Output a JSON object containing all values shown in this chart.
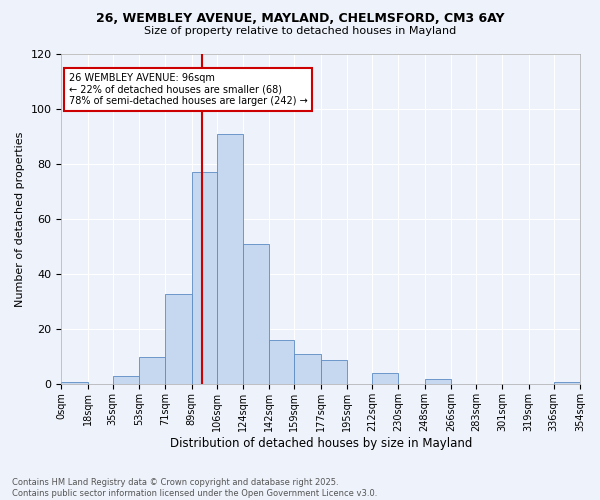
{
  "title1": "26, WEMBLEY AVENUE, MAYLAND, CHELMSFORD, CM3 6AY",
  "title2": "Size of property relative to detached houses in Mayland",
  "xlabel": "Distribution of detached houses by size in Mayland",
  "ylabel": "Number of detached properties",
  "bin_labels": [
    "0sqm",
    "18sqm",
    "35sqm",
    "53sqm",
    "71sqm",
    "89sqm",
    "106sqm",
    "124sqm",
    "142sqm",
    "159sqm",
    "177sqm",
    "195sqm",
    "212sqm",
    "230sqm",
    "248sqm",
    "266sqm",
    "283sqm",
    "301sqm",
    "319sqm",
    "336sqm",
    "354sqm"
  ],
  "bar_values": [
    1,
    0,
    3,
    10,
    33,
    77,
    91,
    51,
    16,
    11,
    9,
    0,
    4,
    0,
    2,
    0,
    0,
    0,
    0,
    1
  ],
  "bar_color": "#c5d8f0",
  "bar_edge_color": "#5b8bc4",
  "vline_x": 96,
  "vline_color": "#cc0000",
  "bin_edges_values": [
    0,
    18,
    35,
    53,
    71,
    89,
    106,
    124,
    142,
    159,
    177,
    195,
    212,
    230,
    248,
    266,
    283,
    301,
    319,
    336,
    354
  ],
  "annotation_text": "26 WEMBLEY AVENUE: 96sqm\n← 22% of detached houses are smaller (68)\n78% of semi-detached houses are larger (242) →",
  "annotation_box_color": "#ffffff",
  "annotation_box_edge": "#cc0000",
  "ylim": [
    0,
    120
  ],
  "yticks": [
    0,
    20,
    40,
    60,
    80,
    100,
    120
  ],
  "footer_text": "Contains HM Land Registry data © Crown copyright and database right 2025.\nContains public sector information licensed under the Open Government Licence v3.0.",
  "bg_color": "#eef2fa"
}
